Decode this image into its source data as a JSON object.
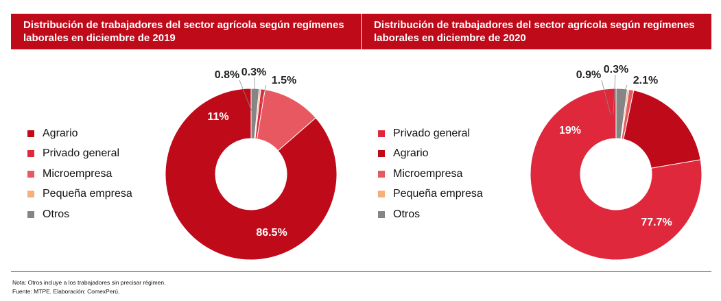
{
  "colors": {
    "title_bg": "#bf0a1a",
    "agrario": "#bf0a1a",
    "privado_general": "#e0283c",
    "microempresa": "#e85860",
    "pequena_empresa": "#f4b07a",
    "otros": "#858585"
  },
  "chart_data": [
    {
      "type": "pie",
      "title": "Distribución de trabajadores del sector agrícola según regímenes laborales en diciembre de 2019",
      "categories": [
        "Agrario",
        "Privado general",
        "Microempresa",
        "Pequeña empresa",
        "Otros"
      ],
      "legend": [
        "Agrario",
        "Privado general",
        "Microempresa",
        "Pequeña empresa",
        "Otros"
      ],
      "slice_order": [
        "Agrario",
        "Microempresa",
        "Privado general",
        "Pequeña empresa",
        "Otros"
      ],
      "values": [
        86.5,
        0.8,
        11,
        0.3,
        1.5
      ],
      "data_labels": {
        "Agrario": "86.5%",
        "Privado general": "0.8%",
        "Microempresa": "11%",
        "Pequeña empresa": "0.3%",
        "Otros": "1.5%"
      }
    },
    {
      "type": "pie",
      "title": "Distribución de trabajadores del sector agrícola según regímenes laborales en diciembre de 2020",
      "categories": [
        "Privado general",
        "Agrario",
        "Microempresa",
        "Pequeña empresa",
        "Otros"
      ],
      "legend": [
        "Privado general",
        "Agrario",
        "Microempresa",
        "Pequeña empresa",
        "Otros"
      ],
      "slice_order": [
        "Privado general",
        "Agrario",
        "Microempresa",
        "Pequeña empresa",
        "Otros"
      ],
      "values": [
        77.7,
        19,
        0.9,
        0.3,
        2.1
      ],
      "data_labels": {
        "Privado general": "77.7%",
        "Agrario": "19%",
        "Microempresa": "0.9%",
        "Pequeña empresa": "0.3%",
        "Otros": "2.1%"
      }
    }
  ],
  "footer": {
    "note": "Nota: Otros incluye a los trabajadores sin precisar régimen.",
    "source": "Fuente: MTPE. Elaboración: ComexPerú."
  }
}
